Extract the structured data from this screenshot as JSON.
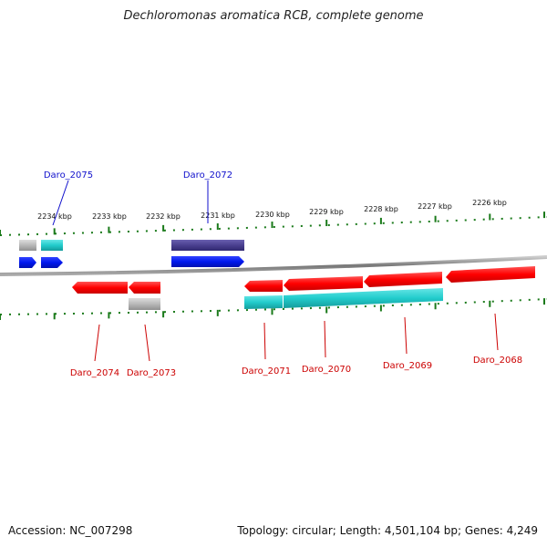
{
  "title": "Dechloromonas aromatica RCB, complete genome",
  "footer": {
    "accession": "Accession: NC_007298",
    "summary": "Topology: circular; Length: 4,501,104 bp; Genes: 4,249"
  },
  "scale_labels": [
    "2234 kbp",
    "2233 kbp",
    "2232 kbp",
    "2231 kbp",
    "2230 kbp",
    "2229 kbp",
    "2228 kbp",
    "2227 kbp",
    "2226 kbp"
  ],
  "colors": {
    "forward_label": "#1010cc",
    "reverse_label": "#cc0000",
    "cds": "#ff0000",
    "cds_forward": "#0022ee",
    "cog_cyan": "#22cccc",
    "cog_gray": "#b8b8b8",
    "cog_purple": "#4a4090",
    "backbone": "#888888",
    "ticks": "#1a7a1a"
  },
  "genes_forward": [
    {
      "name": "Daro_2075",
      "color": "#1010cc"
    },
    {
      "name": "Daro_2072",
      "color": "#1010cc"
    }
  ],
  "genes_reverse": [
    {
      "name": "Daro_2074",
      "color": "#cc0000"
    },
    {
      "name": "Daro_2073",
      "color": "#cc0000"
    },
    {
      "name": "Daro_2071",
      "color": "#cc0000"
    },
    {
      "name": "Daro_2070",
      "color": "#cc0000"
    },
    {
      "name": "Daro_2069",
      "color": "#cc0000"
    },
    {
      "name": "Daro_2068",
      "color": "#cc0000"
    }
  ]
}
